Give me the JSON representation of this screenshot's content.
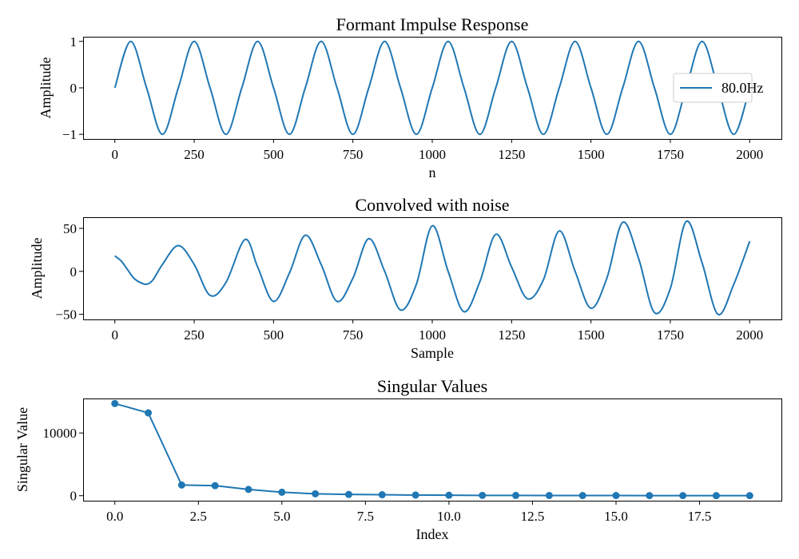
{
  "chart_data": [
    {
      "type": "line",
      "title": "Formant Impulse Response",
      "xlabel": "n",
      "ylabel": "Amplitude",
      "xlim": [
        -100,
        2100
      ],
      "ylim": [
        -1.1,
        1.1
      ],
      "xticks": [
        0,
        250,
        500,
        750,
        1000,
        1250,
        1500,
        1750,
        2000
      ],
      "xtick_labels": [
        "0",
        "250",
        "500",
        "750",
        "1000",
        "1250",
        "1500",
        "1750",
        "2000"
      ],
      "yticks": [
        -1,
        0,
        1
      ],
      "ytick_labels": [
        "−1",
        "0",
        "1"
      ],
      "legend": "center-right",
      "color": "#1f77b4",
      "series": [
        {
          "name": "80.0Hz",
          "x": [
            0,
            50,
            100,
            150,
            200,
            250,
            300,
            350,
            400,
            450,
            500,
            550,
            600,
            650,
            700,
            750,
            800,
            850,
            900,
            950,
            1000,
            1050,
            1100,
            1150,
            1200,
            1250,
            1300,
            1350,
            1400,
            1450,
            1500,
            1550,
            1600,
            1650,
            1700,
            1750,
            1800,
            1850,
            1900,
            1950,
            2000
          ],
          "y": [
            0,
            1,
            0,
            -1,
            0,
            1,
            0,
            -1,
            0,
            1,
            0,
            -1,
            0,
            1,
            0,
            -1,
            0,
            1,
            0,
            -1,
            0,
            1,
            0,
            -1,
            0,
            1,
            0,
            -1,
            0,
            1,
            0,
            -1,
            0,
            1,
            0,
            -1,
            0,
            1,
            0,
            -1,
            0
          ]
        }
      ]
    },
    {
      "type": "line",
      "title": "Convolved with noise",
      "xlabel": "Sample",
      "ylabel": "Amplitude",
      "xlim": [
        -100,
        2100
      ],
      "ylim": [
        -56,
        63
      ],
      "xticks": [
        0,
        250,
        500,
        750,
        1000,
        1250,
        1500,
        1750,
        2000
      ],
      "xtick_labels": [
        "0",
        "250",
        "500",
        "750",
        "1000",
        "1250",
        "1500",
        "1750",
        "2000"
      ],
      "yticks": [
        -50,
        0,
        50
      ],
      "ytick_labels": [
        "−50",
        "0",
        "50"
      ],
      "color": "#1f77b4",
      "series": [
        {
          "x": [
            0,
            20,
            40,
            60,
            80,
            100,
            120,
            150,
            200,
            250,
            300,
            350,
            410,
            450,
            500,
            550,
            600,
            650,
            700,
            750,
            800,
            850,
            900,
            950,
            1000,
            1050,
            1100,
            1150,
            1200,
            1250,
            1300,
            1350,
            1400,
            1450,
            1500,
            1550,
            1600,
            1650,
            1700,
            1750,
            1800,
            1850,
            1900,
            1950,
            2000
          ],
          "y": [
            18,
            12,
            2,
            -8,
            -13,
            -15,
            -10,
            8,
            30,
            8,
            -28,
            -13,
            37,
            5,
            -35,
            -2,
            42,
            8,
            -35,
            -8,
            38,
            0,
            -45,
            -15,
            53,
            0,
            -47,
            -12,
            43,
            5,
            -32,
            -10,
            47,
            0,
            -43,
            -8,
            57,
            15,
            -48,
            -20,
            58,
            10,
            -50,
            -15,
            35
          ]
        }
      ]
    },
    {
      "type": "line",
      "title": "Singular Values",
      "xlabel": "Index",
      "ylabel": "Singular Value",
      "xlim": [
        -0.95,
        19.95
      ],
      "ylim": [
        -800,
        15500
      ],
      "xticks": [
        0,
        2.5,
        5,
        7.5,
        10,
        12.5,
        15,
        17.5
      ],
      "xtick_labels": [
        "0.0",
        "2.5",
        "5.0",
        "7.5",
        "10.0",
        "12.5",
        "15.0",
        "17.5"
      ],
      "yticks": [
        0,
        10000
      ],
      "ytick_labels": [
        "0",
        "10000"
      ],
      "markers": true,
      "color": "#1f77b4",
      "series": [
        {
          "x": [
            0,
            1,
            2,
            3,
            4,
            5,
            6,
            7,
            8,
            9,
            10,
            11,
            12,
            13,
            14,
            15,
            16,
            17,
            18,
            19
          ],
          "y": [
            14700,
            13200,
            1700,
            1600,
            1000,
            550,
            300,
            200,
            150,
            100,
            70,
            50,
            40,
            30,
            25,
            20,
            15,
            12,
            10,
            5
          ]
        }
      ]
    }
  ]
}
